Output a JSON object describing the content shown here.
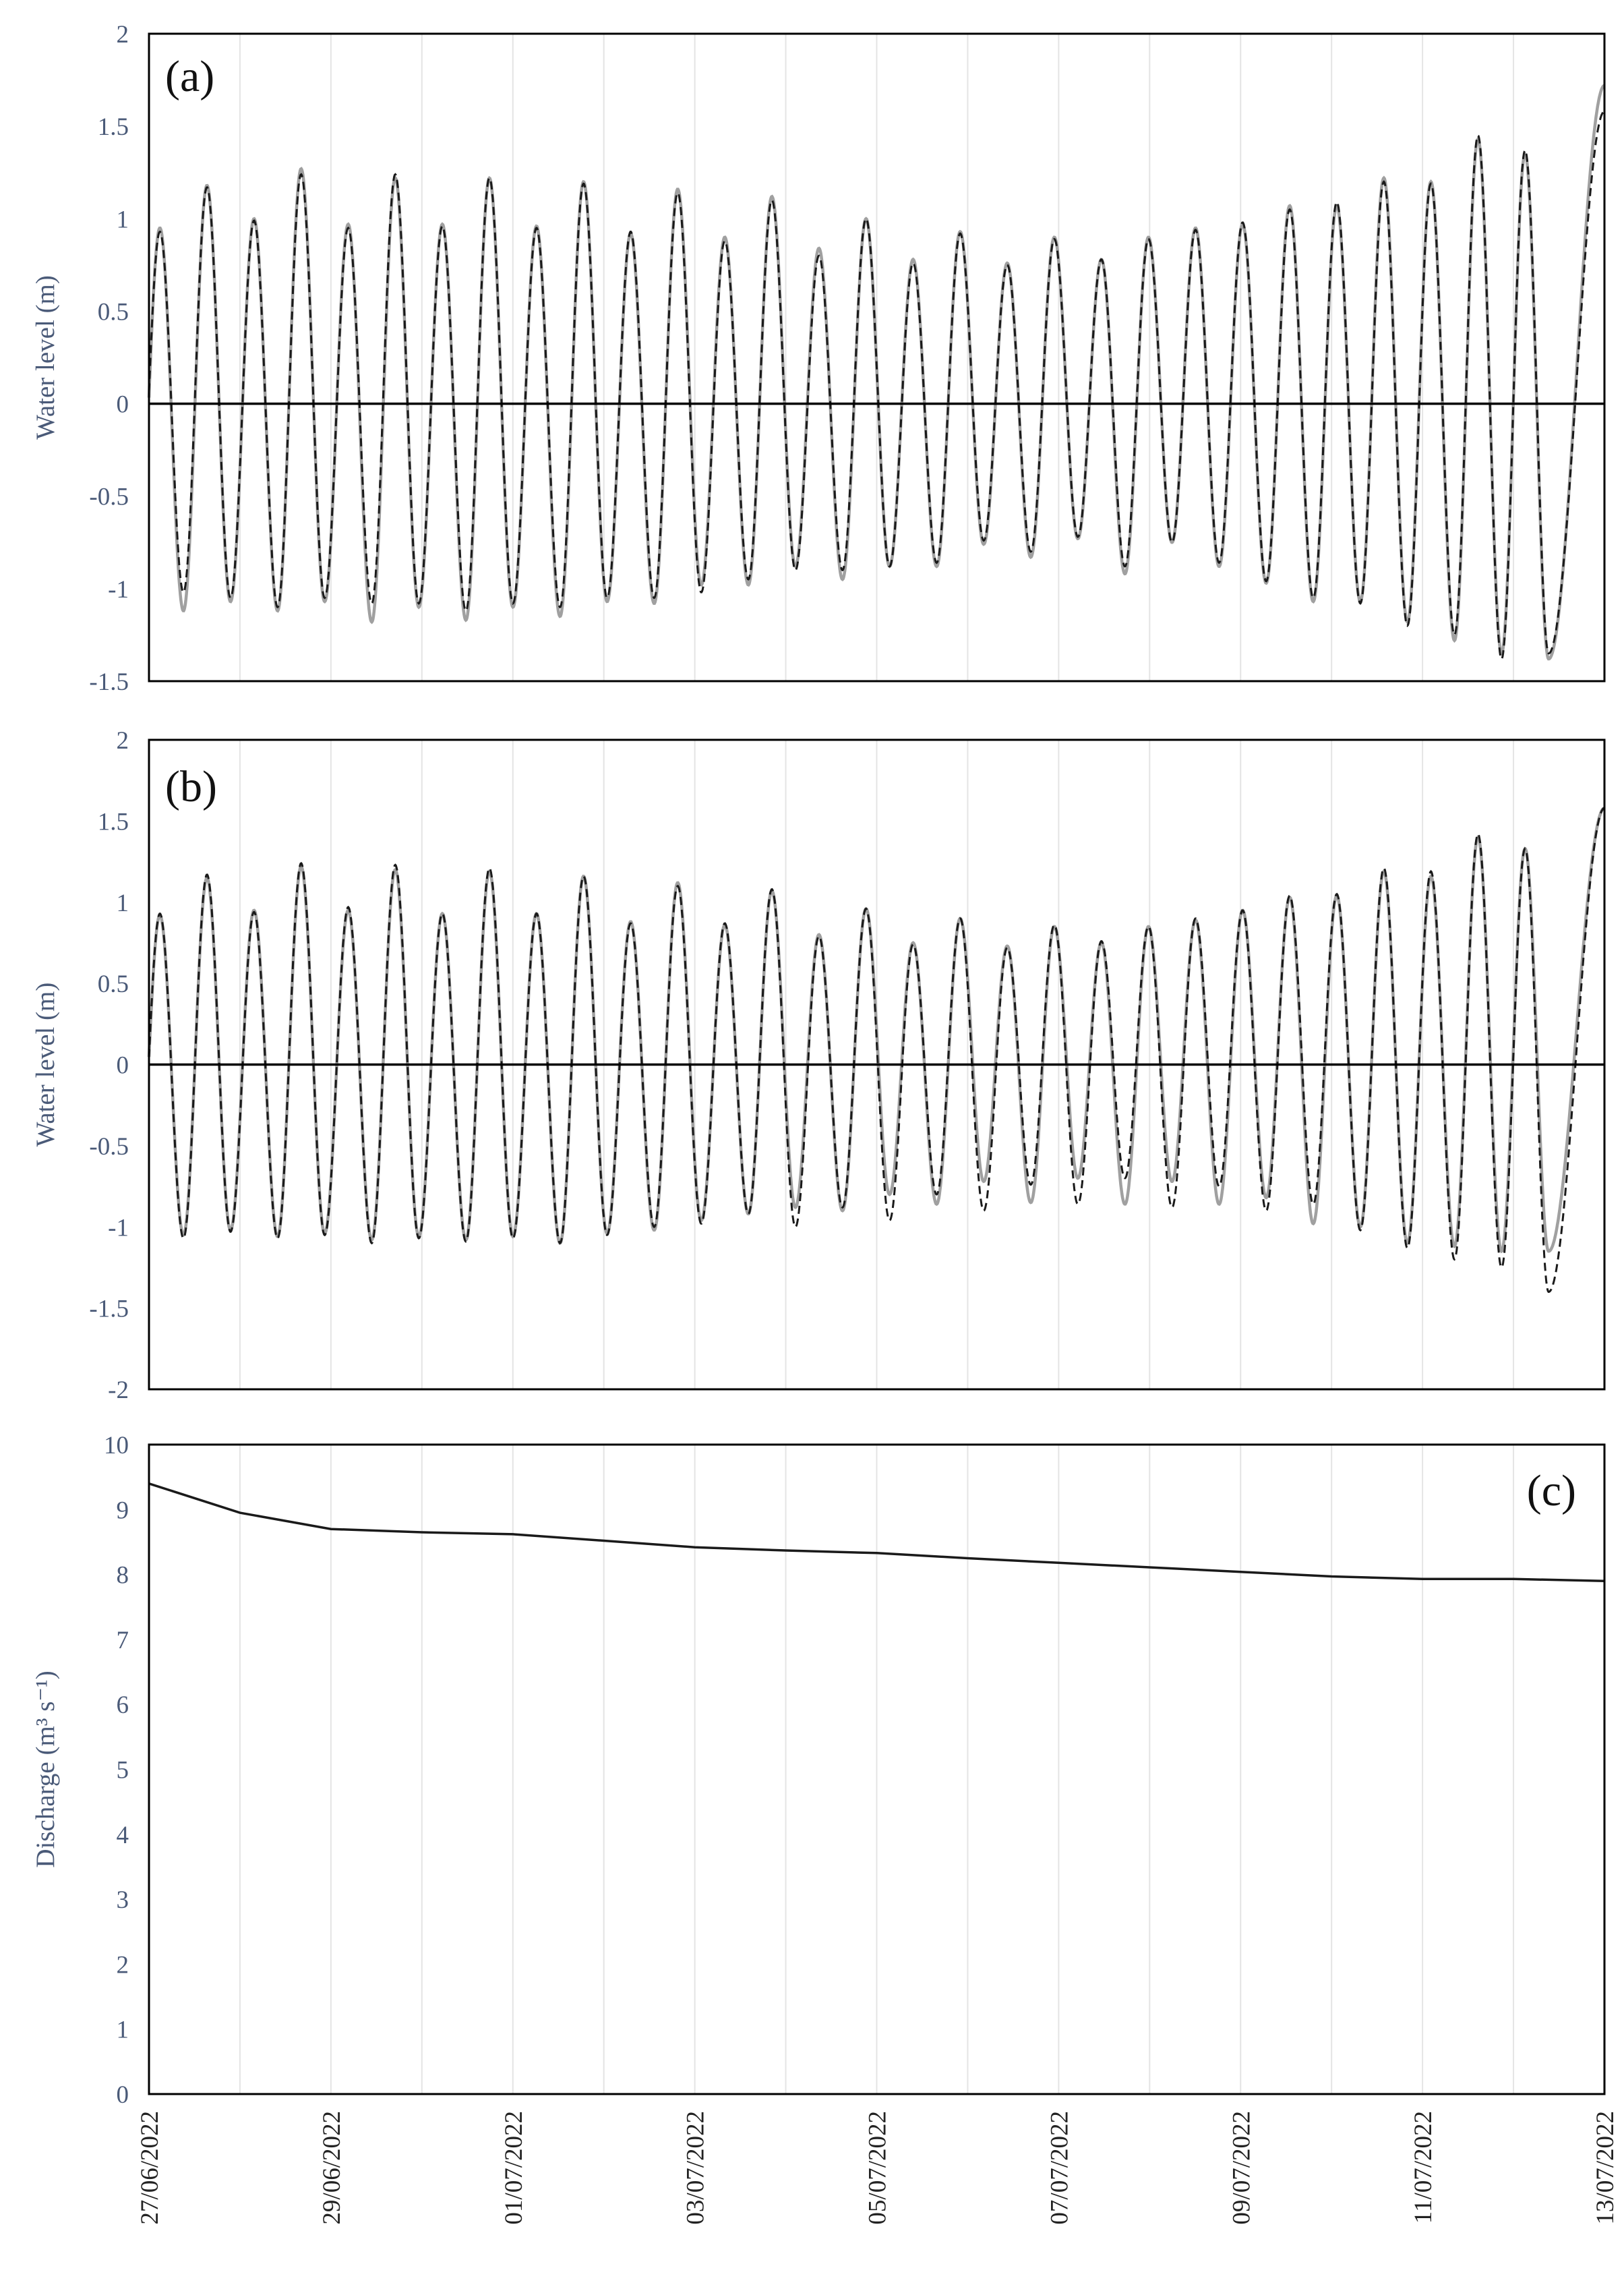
{
  "colors": {
    "observed": "#a0a0a0",
    "modelled": "#1a1a1a",
    "zero_line": "#000000",
    "discharge": "#1a1a1a",
    "grid": "#e4e4e4",
    "frame": "#000000",
    "tick_text": "#4a5a78"
  },
  "x_axis": {
    "type": "date",
    "range": [
      "2022-06-27",
      "2022-07-13"
    ],
    "tick_labels": [
      "27/06/2022",
      "29/06/2022",
      "01/07/2022",
      "03/07/2022",
      "05/07/2022",
      "07/07/2022",
      "09/07/2022",
      "11/07/2022",
      "13/07/2022"
    ],
    "tick_dates": [
      "2022-06-27",
      "2022-06-29",
      "2022-07-01",
      "2022-07-03",
      "2022-07-05",
      "2022-07-07",
      "2022-07-09",
      "2022-07-11",
      "2022-07-13"
    ],
    "minor_grid": "daily",
    "label_rotation": "vertical"
  },
  "chart_data": [
    {
      "panel_label": "(a)",
      "type": "line",
      "ylabel": "Water level (m)",
      "ylim": [
        -1.5,
        2
      ],
      "yticks": [
        "2",
        "1.5",
        "1",
        "0.5",
        "0",
        "-0.5",
        "-1",
        "-1.5"
      ],
      "ytick_values": [
        2,
        1.5,
        1,
        0.5,
        0,
        -0.5,
        -1,
        -1.5
      ],
      "grid": "vertical",
      "zero_line": true,
      "tide_period_hours": 12.42,
      "series": [
        {
          "style": "solid",
          "color": "#a0a0a0",
          "high_water": [
            0.95,
            1.18,
            1.0,
            1.27,
            0.97,
            1.22,
            0.97,
            1.22,
            0.96,
            1.2,
            0.92,
            1.16,
            0.9,
            1.12,
            0.84,
            1.0,
            0.78,
            0.93,
            0.76,
            0.9,
            0.78,
            0.9,
            0.95,
            0.97,
            1.07,
            1.07,
            1.22,
            1.2,
            1.43,
            1.35
          ],
          "low_water": [
            -1.12,
            -1.07,
            -1.12,
            -1.07,
            -1.18,
            -1.1,
            -1.17,
            -1.1,
            -1.15,
            -1.07,
            -1.08,
            -0.98,
            -0.98,
            -0.88,
            -0.95,
            -0.88,
            -0.88,
            -0.76,
            -0.83,
            -0.73,
            -0.92,
            -0.75,
            -0.88,
            -0.97,
            -1.07,
            -1.07,
            -1.18,
            -1.28,
            -1.35,
            -1.38
          ],
          "end_value": 1.72
        },
        {
          "style": "dashed",
          "color": "#1a1a1a",
          "high_water": [
            0.93,
            1.17,
            0.99,
            1.24,
            0.95,
            1.24,
            0.96,
            1.22,
            0.95,
            1.19,
            0.93,
            1.14,
            0.88,
            1.1,
            0.8,
            1.0,
            0.76,
            0.92,
            0.75,
            0.89,
            0.78,
            0.89,
            0.94,
            0.98,
            1.05,
            1.09,
            1.2,
            1.19,
            1.45,
            1.37
          ],
          "low_water": [
            -1.02,
            -1.05,
            -1.1,
            -1.05,
            -1.08,
            -1.08,
            -1.12,
            -1.08,
            -1.1,
            -1.05,
            -1.05,
            -1.02,
            -0.95,
            -0.9,
            -0.9,
            -0.88,
            -0.86,
            -0.74,
            -0.8,
            -0.72,
            -0.88,
            -0.75,
            -0.86,
            -0.96,
            -1.05,
            -1.08,
            -1.2,
            -1.25,
            -1.38,
            -1.35
          ],
          "end_value": 1.58
        }
      ]
    },
    {
      "panel_label": "(b)",
      "type": "line",
      "ylabel": "Water level (m)",
      "ylim": [
        -2,
        2
      ],
      "yticks": [
        "2",
        "1.5",
        "1",
        "0.5",
        "0",
        "-0.5",
        "-1",
        "-1.5",
        "-2"
      ],
      "ytick_values": [
        2,
        1.5,
        1,
        0.5,
        0,
        -0.5,
        -1,
        -1.5,
        -2
      ],
      "grid": "vertical",
      "zero_line": true,
      "tide_period_hours": 12.42,
      "series": [
        {
          "style": "solid",
          "color": "#a0a0a0",
          "high_water": [
            0.92,
            1.15,
            0.95,
            1.22,
            0.95,
            1.2,
            0.93,
            1.19,
            0.93,
            1.16,
            0.88,
            1.12,
            0.86,
            1.07,
            0.8,
            0.96,
            0.75,
            0.9,
            0.73,
            0.85,
            0.75,
            0.85,
            0.89,
            0.95,
            1.03,
            1.04,
            1.19,
            1.16,
            1.4,
            1.33
          ],
          "low_water": [
            -1.05,
            -1.02,
            -1.06,
            -1.04,
            -1.08,
            -1.06,
            -1.08,
            -1.06,
            -1.1,
            -1.04,
            -1.02,
            -0.96,
            -0.92,
            -0.88,
            -0.9,
            -0.8,
            -0.86,
            -0.72,
            -0.85,
            -0.7,
            -0.86,
            -0.72,
            -0.86,
            -0.82,
            -0.98,
            -1.0,
            -1.1,
            -1.12,
            -1.15,
            -1.15
          ],
          "end_value": 1.58
        },
        {
          "style": "dashed",
          "color": "#1a1a1a",
          "high_water": [
            0.93,
            1.17,
            0.94,
            1.24,
            0.97,
            1.23,
            0.93,
            1.21,
            0.93,
            1.16,
            0.87,
            1.1,
            0.87,
            1.08,
            0.79,
            0.96,
            0.74,
            0.9,
            0.72,
            0.86,
            0.76,
            0.85,
            0.9,
            0.95,
            1.04,
            1.05,
            1.21,
            1.19,
            1.42,
            1.33
          ],
          "low_water": [
            -1.07,
            -1.03,
            -1.07,
            -1.05,
            -1.1,
            -1.07,
            -1.09,
            -1.07,
            -1.1,
            -1.05,
            -1.0,
            -0.98,
            -0.92,
            -1.0,
            -0.88,
            -0.96,
            -0.8,
            -0.9,
            -0.74,
            -0.86,
            -0.7,
            -0.88,
            -0.75,
            -0.9,
            -0.86,
            -1.02,
            -1.13,
            -1.2,
            -1.25,
            -1.4
          ],
          "end_value": 1.58
        }
      ]
    },
    {
      "panel_label": "(c)",
      "type": "line",
      "ylabel": "Discharge  (m³ s⁻¹)",
      "ylim": [
        0,
        10
      ],
      "yticks": [
        "10",
        "9",
        "8",
        "7",
        "6",
        "5",
        "4",
        "3",
        "2",
        "1",
        "0"
      ],
      "ytick_values": [
        10,
        9,
        8,
        7,
        6,
        5,
        4,
        3,
        2,
        1,
        0
      ],
      "grid": "vertical",
      "series": [
        {
          "style": "solid",
          "color": "#1a1a1a",
          "x": [
            "2022-06-27",
            "2022-06-28",
            "2022-06-29",
            "2022-06-30",
            "2022-07-01",
            "2022-07-02",
            "2022-07-03",
            "2022-07-04",
            "2022-07-05",
            "2022-07-06",
            "2022-07-07",
            "2022-07-08",
            "2022-07-09",
            "2022-07-10",
            "2022-07-11",
            "2022-07-12",
            "2022-07-13"
          ],
          "y": [
            9.4,
            8.95,
            8.7,
            8.65,
            8.62,
            8.52,
            8.42,
            8.37,
            8.33,
            8.25,
            8.18,
            8.11,
            8.04,
            7.97,
            7.93,
            7.93,
            7.9
          ]
        }
      ]
    }
  ]
}
